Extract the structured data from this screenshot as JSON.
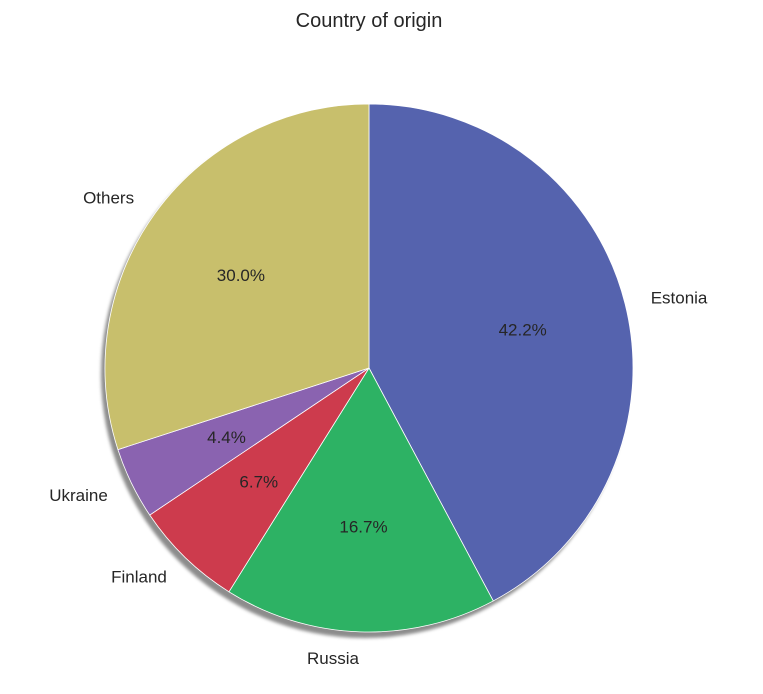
{
  "chart_data": {
    "type": "pie",
    "title": "Country of origin",
    "start_angle_deg": 90,
    "direction": "clockwise",
    "shadow": true,
    "slices": [
      {
        "label": "Estonia",
        "value": 42.2,
        "pct_label": "42.2%",
        "color": "#5563AE"
      },
      {
        "label": "Russia",
        "value": 16.7,
        "pct_label": "16.7%",
        "color": "#2DB264"
      },
      {
        "label": "Finland",
        "value": 6.7,
        "pct_label": "6.7%",
        "color": "#CD3B4D"
      },
      {
        "label": "Ukraine",
        "value": 4.4,
        "pct_label": "4.4%",
        "color": "#8A63B0"
      },
      {
        "label": "Others",
        "value": 30.0,
        "pct_label": "30.0%",
        "color": "#C8BF6C"
      }
    ]
  }
}
